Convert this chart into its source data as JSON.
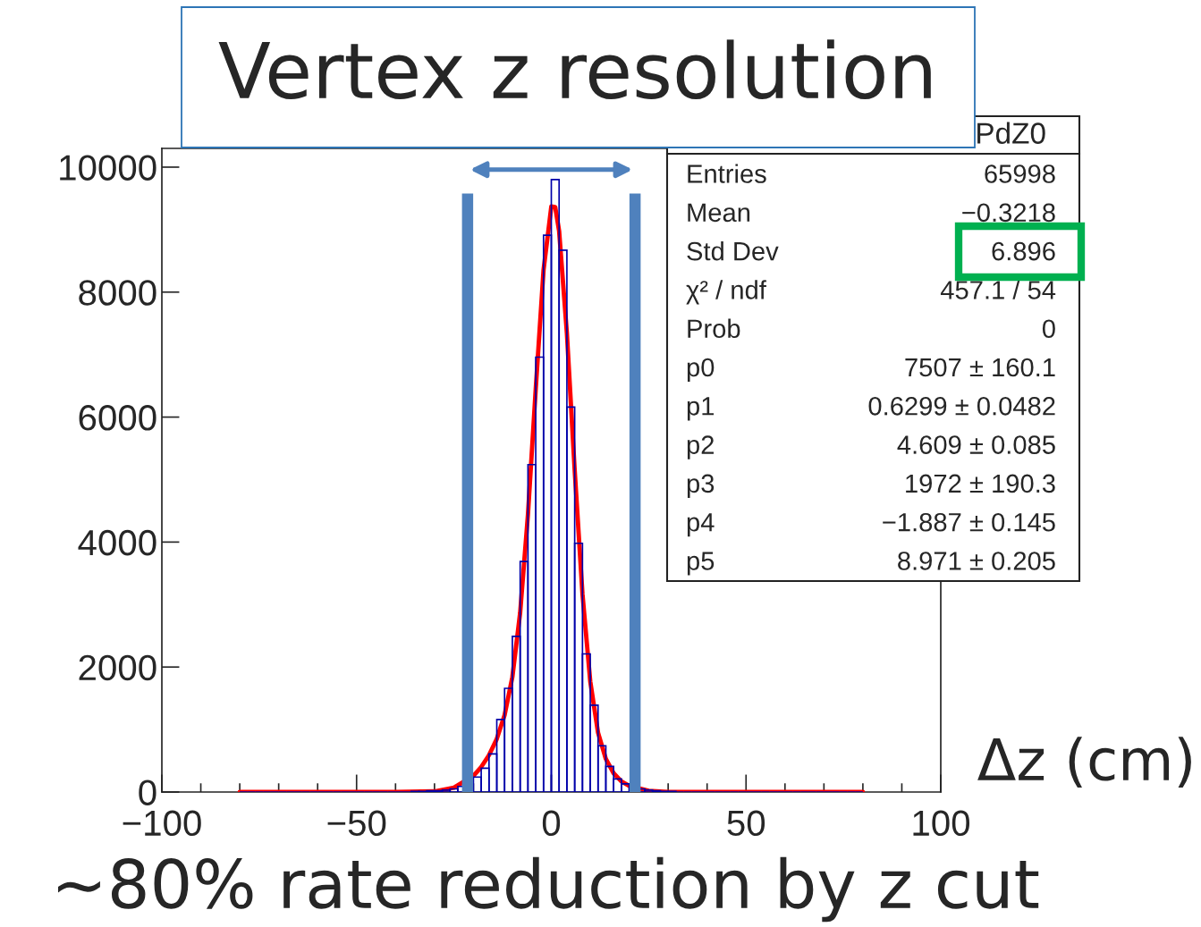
{
  "chart_data": {
    "type": "histogram",
    "title": "Vertex z resolution",
    "xlabel": "Δz (cm)",
    "xlim": [
      -100,
      100
    ],
    "xticks": [
      {
        "value": -100,
        "label": "−100"
      },
      {
        "value": -50,
        "label": "−50"
      },
      0,
      50,
      100
    ],
    "ylim": [
      0,
      10300
    ],
    "yticks": [
      0,
      2000,
      4000,
      6000,
      8000,
      10000
    ],
    "grid": false,
    "series": [
      {
        "color": "#0000aa",
        "bins": [
          -80,
          -78,
          -76,
          -74,
          -72,
          -70,
          -68,
          -66,
          -64,
          -62,
          -60,
          -58,
          -56,
          -54,
          -52,
          -50,
          -48,
          -46,
          -44,
          -42,
          -40,
          -38,
          -36,
          -34,
          -32,
          -30,
          -28,
          -26,
          -24,
          -22,
          -20,
          -18,
          -16,
          -14,
          -12,
          -10,
          -8,
          -6,
          -4,
          -2,
          0,
          2,
          4,
          6,
          8,
          10,
          12,
          14,
          16,
          18,
          20,
          22,
          24,
          26,
          28,
          30,
          32,
          34,
          36,
          38,
          40,
          42,
          44,
          46,
          48,
          50,
          52,
          54,
          56,
          58,
          60,
          62,
          64,
          66,
          68,
          70,
          72,
          74,
          76,
          78,
          80
        ],
        "values": [
          0,
          0,
          0,
          0,
          0,
          0,
          0,
          0,
          0,
          0,
          0,
          0,
          0,
          0,
          0,
          0,
          0,
          0,
          0,
          0,
          0,
          0,
          10,
          10,
          20,
          20,
          30,
          50,
          90,
          null,
          240,
          380,
          610,
          1160,
          1660,
          2490,
          3690,
          5240,
          6960,
          8910,
          9800,
          8670,
          6160,
          3980,
          2210,
          1390,
          740,
          410,
          210,
          130,
          null,
          50,
          30,
          20,
          10,
          10,
          0,
          0,
          0,
          0,
          0,
          0,
          0,
          0,
          0,
          0,
          0,
          0,
          0,
          0,
          0,
          0,
          0,
          0,
          0,
          0,
          0,
          0,
          0,
          0
        ]
      },
      {
        "type": "line",
        "color": "#ff0000",
        "x": [
          -80,
          -40,
          -30,
          -25,
          -20,
          -18,
          -16,
          -14,
          -12,
          -10,
          -8,
          -6,
          -4,
          -2,
          0,
          1,
          2,
          4,
          6,
          8,
          10,
          12,
          14,
          16,
          18,
          20,
          25,
          30,
          40,
          80
        ],
        "values": [
          0,
          0,
          10,
          70,
          260,
          400,
          590,
          850,
          1230,
          1840,
          2870,
          4440,
          6450,
          8350,
          9370,
          9360,
          8980,
          7340,
          5150,
          3170,
          1770,
          950,
          530,
          300,
          170,
          100,
          20,
          0,
          0,
          0
        ]
      }
    ],
    "ref_lines": [
      {
        "axis": "x",
        "value": -21.5,
        "color": "#4f81bd"
      },
      {
        "axis": "x",
        "value": 21.5,
        "color": "#4f81bd"
      }
    ],
    "annotations": [
      "~80% rate reduction by z cut",
      "PdZ0",
      "Entries",
      "65998",
      "Mean",
      "−0.3218",
      "Std Dev",
      "6.896",
      "χ² / ndf",
      "457.1 / 54",
      "Prob",
      "0",
      "p0",
      "7507 ± 160.1",
      "p1",
      "0.6299 ± 0.0482",
      "p2",
      "4.609 ± 0.085",
      "p3",
      "1972 ± 190.3",
      "p4",
      "−1.887 ± 0.145",
      "p5",
      "8.971 ± 0.205"
    ]
  }
}
